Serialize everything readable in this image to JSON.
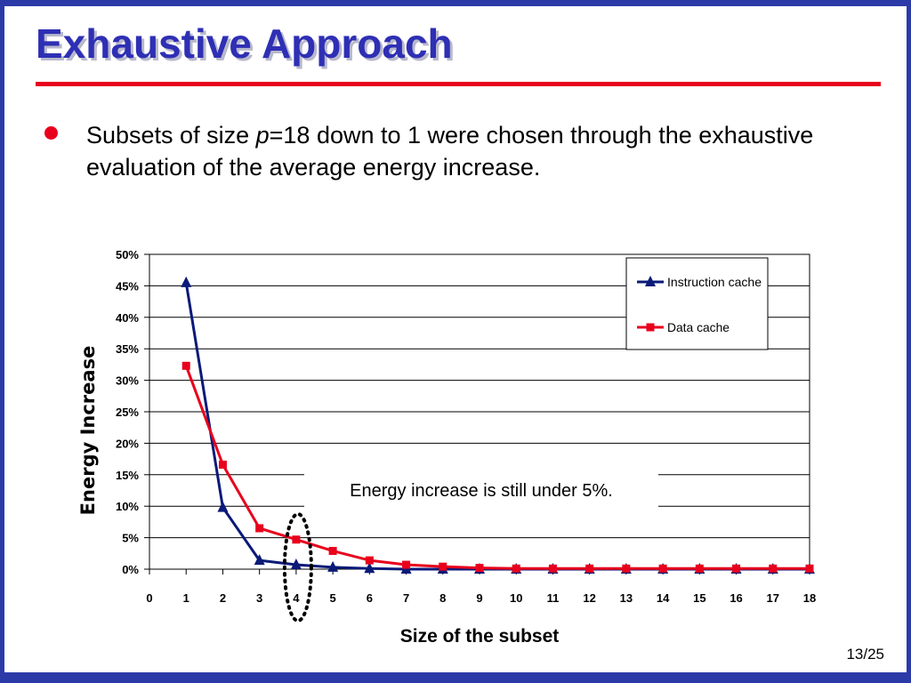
{
  "colors": {
    "frame": "#2c3aa8",
    "title": "#2e2fb4",
    "rule": "#e8001c",
    "bullet": "#e8001c",
    "instruction": "#0a1a78",
    "data": "#e8001c",
    "highlight_ellipse": "#000000"
  },
  "slide": {
    "title": "Exhaustive Approach",
    "bullet": {
      "pre": "Subsets of size ",
      "var": "p",
      "post": "=18 down to 1 were chosen through the exhaustive evaluation of the average energy increase."
    },
    "page_number": "13/25"
  },
  "chart_data": {
    "type": "line",
    "title": "",
    "xlabel": "Size of the subset",
    "ylabel": "Energy Increase",
    "x": [
      1,
      2,
      3,
      4,
      5,
      6,
      7,
      8,
      9,
      10,
      11,
      12,
      13,
      14,
      15,
      16,
      17,
      18
    ],
    "x_ticks": [
      0,
      1,
      2,
      3,
      4,
      5,
      6,
      7,
      8,
      9,
      10,
      11,
      12,
      13,
      14,
      15,
      16,
      17,
      18
    ],
    "xlim": [
      0,
      18
    ],
    "ylim": [
      0,
      50
    ],
    "y_ticks": [
      "0%",
      "5%",
      "10%",
      "15%",
      "20%",
      "25%",
      "30%",
      "35%",
      "40%",
      "45%",
      "50%"
    ],
    "grid": "horizontal",
    "legend_position": "top-right",
    "series": [
      {
        "name": "Instruction cache",
        "marker": "triangle",
        "color": "#0a1a78",
        "values": [
          45.5,
          9.8,
          1.4,
          0.7,
          0.3,
          0.1,
          0.0,
          0.0,
          0.0,
          0.0,
          0.0,
          0.0,
          0.0,
          0.0,
          0.0,
          0.0,
          0.0,
          0.0
        ]
      },
      {
        "name": "Data cache",
        "marker": "square",
        "color": "#e8001c",
        "values": [
          32.3,
          16.6,
          6.5,
          4.7,
          2.9,
          1.4,
          0.7,
          0.4,
          0.2,
          0.1,
          0.1,
          0.1,
          0.1,
          0.1,
          0.1,
          0.1,
          0.1,
          0.1
        ]
      }
    ],
    "annotation": "Energy increase is still under 5%.",
    "highlight_x": 4
  }
}
